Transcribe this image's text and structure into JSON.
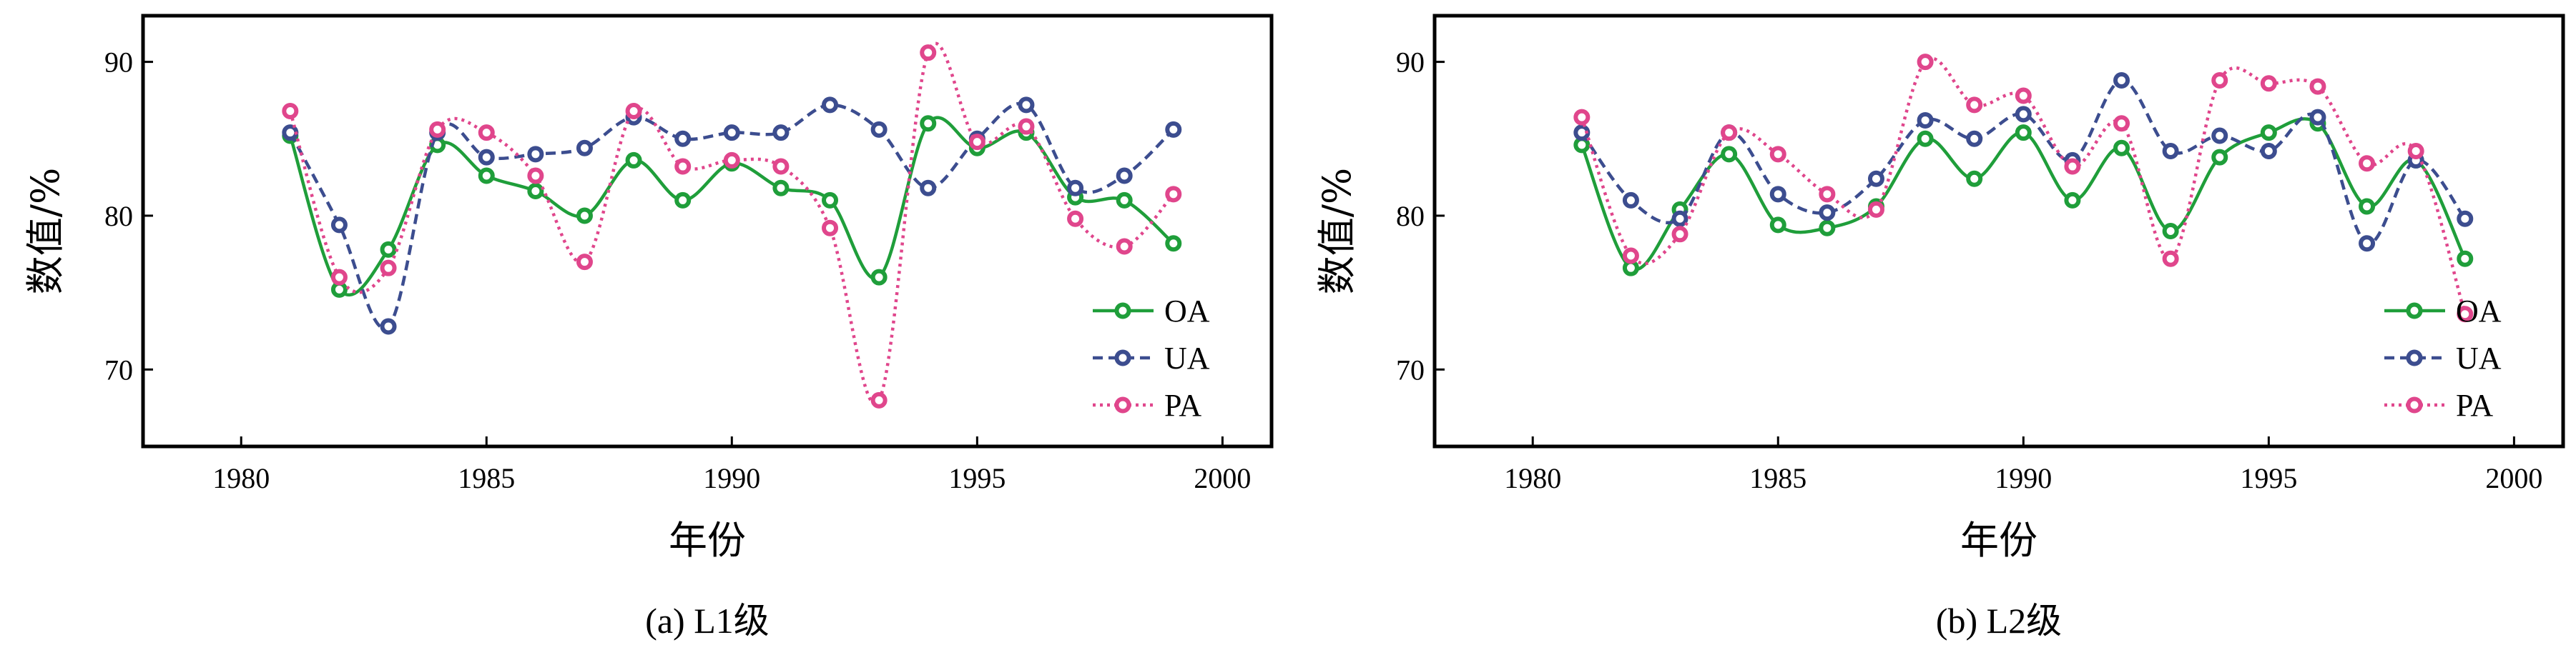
{
  "chart_data": [
    {
      "type": "line",
      "panel": "a",
      "caption": "(a) L1级",
      "xlabel": "年份",
      "ylabel": "数值/%",
      "xlim": [
        1978,
        2001
      ],
      "ylim": [
        65,
        93
      ],
      "xticks": [
        1980,
        1985,
        1990,
        1995,
        2000
      ],
      "yticks": [
        70,
        80,
        90
      ],
      "x": [
        1981,
        1982,
        1983,
        1984,
        1985,
        1986,
        1987,
        1988,
        1989,
        1990,
        1991,
        1992,
        1993,
        1994,
        1995,
        1996,
        1997,
        1998,
        1999
      ],
      "series": [
        {
          "name": "OA",
          "color": "#1f9e3a",
          "dash": "solid",
          "values": [
            85.2,
            75.2,
            77.8,
            84.6,
            82.6,
            81.6,
            80.0,
            83.6,
            81.0,
            83.4,
            81.8,
            81.0,
            76.0,
            86.0,
            84.4,
            85.4,
            81.2,
            81.0,
            78.2
          ]
        },
        {
          "name": "UA",
          "color": "#3c4d8f",
          "dash": "dashed",
          "values": [
            85.4,
            79.4,
            72.8,
            85.4,
            83.8,
            84.0,
            84.4,
            86.4,
            85.0,
            85.4,
            85.4,
            87.2,
            85.6,
            81.8,
            85.0,
            87.2,
            81.8,
            82.6,
            85.6
          ]
        },
        {
          "name": "PA",
          "color": "#e0468c",
          "dash": "dotted",
          "values": [
            86.8,
            76.0,
            76.6,
            85.6,
            85.4,
            82.6,
            77.0,
            86.8,
            83.2,
            83.6,
            83.2,
            79.2,
            68.0,
            90.6,
            84.8,
            85.8,
            79.8,
            78.0,
            81.4
          ]
        }
      ],
      "legend": "center-right"
    },
    {
      "type": "line",
      "panel": "b",
      "caption": "(b) L2级",
      "xlabel": "年份",
      "ylabel": "数值/%",
      "xlim": [
        1978,
        2001
      ],
      "ylim": [
        65,
        93
      ],
      "xticks": [
        1980,
        1985,
        1990,
        1995,
        2000
      ],
      "yticks": [
        70,
        80,
        90
      ],
      "x": [
        1981,
        1982,
        1983,
        1984,
        1985,
        1986,
        1987,
        1988,
        1989,
        1990,
        1991,
        1992,
        1993,
        1994,
        1995,
        1996,
        1997,
        1998,
        1999
      ],
      "series": [
        {
          "name": "OA",
          "color": "#1f9e3a",
          "dash": "solid",
          "values": [
            84.6,
            76.6,
            80.4,
            84.0,
            79.4,
            79.2,
            80.6,
            85.0,
            82.4,
            85.4,
            81.0,
            84.4,
            79.0,
            83.8,
            85.4,
            86.0,
            80.6,
            83.6,
            77.2
          ]
        },
        {
          "name": "UA",
          "color": "#3c4d8f",
          "dash": "dashed",
          "values": [
            85.4,
            81.0,
            79.8,
            85.4,
            81.4,
            80.2,
            82.4,
            86.2,
            85.0,
            86.6,
            83.6,
            88.8,
            84.2,
            85.2,
            84.2,
            86.4,
            78.2,
            83.6,
            79.8
          ]
        },
        {
          "name": "PA",
          "color": "#e0468c",
          "dash": "dotted",
          "values": [
            86.4,
            77.4,
            78.8,
            85.4,
            84.0,
            81.4,
            80.4,
            90.0,
            87.2,
            87.8,
            83.2,
            86.0,
            77.2,
            88.8,
            88.6,
            88.4,
            83.4,
            84.2,
            73.6
          ]
        }
      ],
      "legend": "center-right"
    }
  ]
}
